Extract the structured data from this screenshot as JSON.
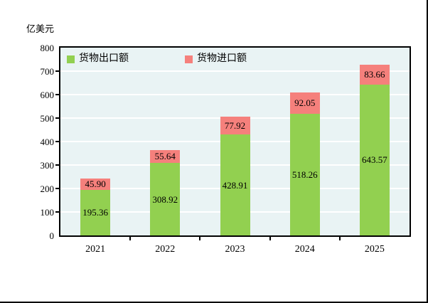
{
  "chart_data": {
    "type": "bar",
    "stacked": true,
    "title": "",
    "ylabel": "亿美元",
    "xlabel": "",
    "categories": [
      "2021",
      "2022",
      "2023",
      "2024",
      "2025"
    ],
    "series": [
      {
        "name": "货物出口额",
        "color": "#92d050",
        "values": [
          195.36,
          308.92,
          428.91,
          518.26,
          643.57
        ],
        "value_labels": [
          "195.36",
          "308.92",
          "428.91",
          "518.26",
          "643.57"
        ]
      },
      {
        "name": "货物进口额",
        "color": "#f5807c",
        "values": [
          45.9,
          55.64,
          77.92,
          92.05,
          83.66
        ],
        "value_labels": [
          "45.90",
          "55.64",
          "77.92",
          "92.05",
          "83.66"
        ]
      }
    ],
    "ylim": [
      0,
      800
    ],
    "yticks": [
      0,
      100,
      200,
      300,
      400,
      500,
      600,
      700,
      800
    ],
    "grid": true,
    "gridcolor": "#ffffff",
    "plot_bg": "#e9f3f4",
    "axis_color": "#000000",
    "legend_position": "top-left-inside"
  }
}
